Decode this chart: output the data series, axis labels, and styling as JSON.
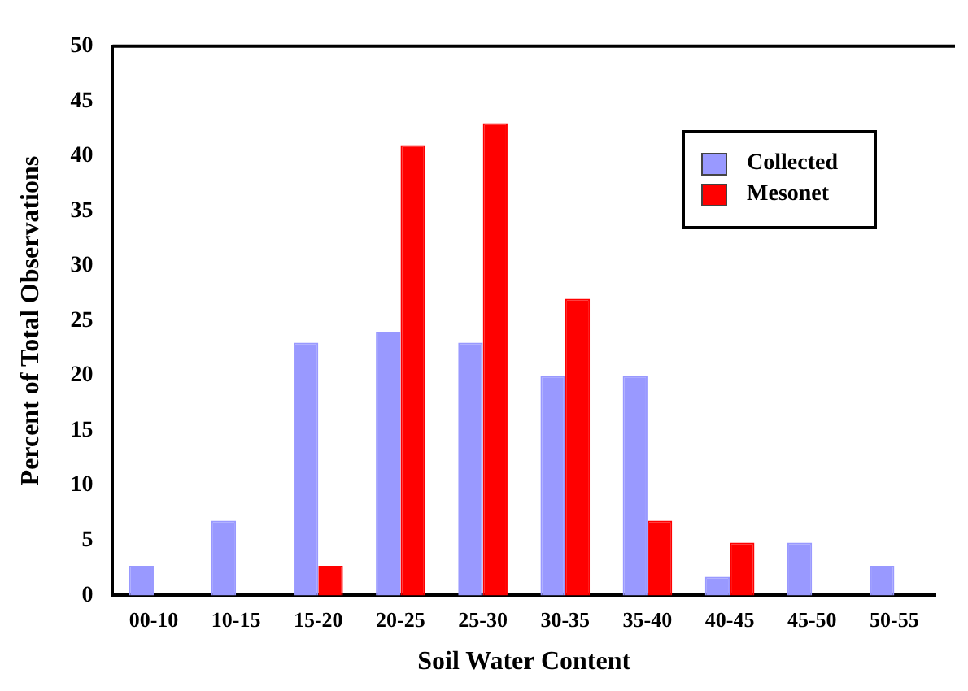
{
  "chart_data": {
    "type": "bar",
    "xlabel": "Soil Water Content",
    "ylabel": "Percent of Total Observations",
    "categories": [
      "00-10",
      "10-15",
      "15-20",
      "20-25",
      "25-30",
      "30-35",
      "35-40",
      "40-45",
      "45-50",
      "50-55"
    ],
    "series": [
      {
        "name": "Collected",
        "color": "#9999ff",
        "values": [
          2.7,
          6.8,
          23,
          24,
          23,
          20,
          20,
          1.7,
          4.8,
          2.7
        ]
      },
      {
        "name": "Mesonet",
        "color": "#ff0000",
        "values": [
          0,
          0,
          2.7,
          41,
          43,
          27,
          6.8,
          4.8,
          0,
          0
        ]
      }
    ],
    "ylim": [
      0,
      50
    ],
    "yticks": [
      0,
      5,
      10,
      15,
      20,
      25,
      30,
      35,
      40,
      45,
      50
    ],
    "grid": false,
    "legend": "top right"
  }
}
